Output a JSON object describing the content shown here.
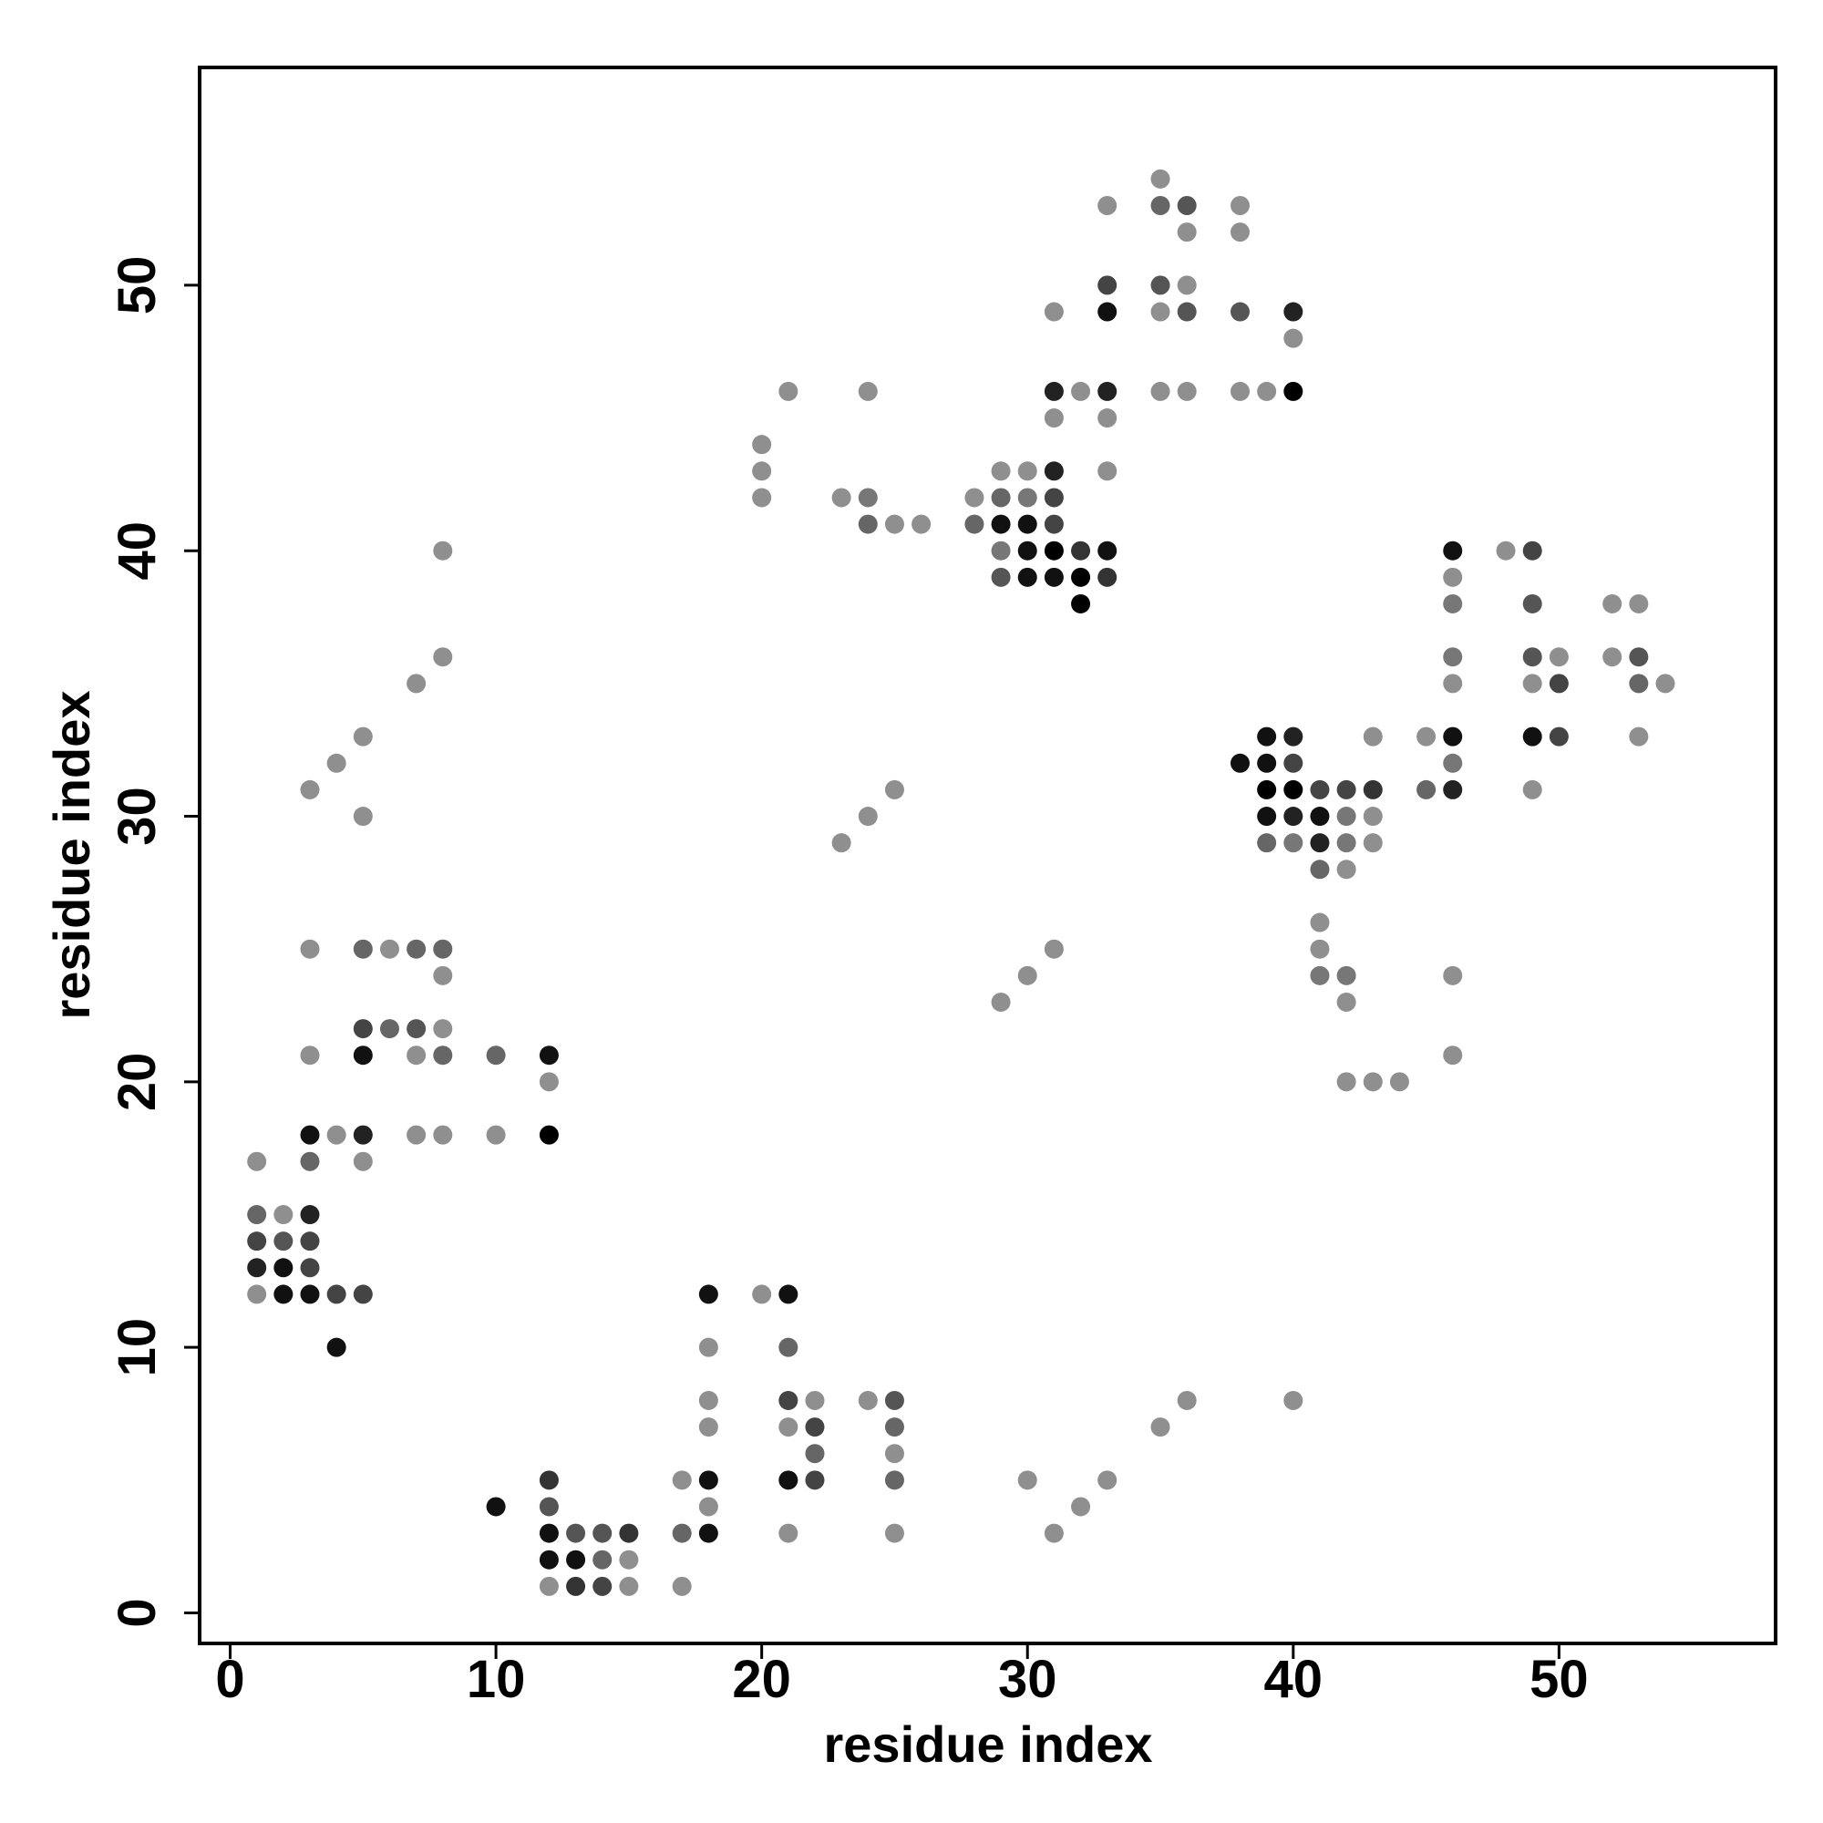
{
  "chart_data": {
    "type": "scatter",
    "x_label": "residue index",
    "y_label": "residue index",
    "xlim": [
      -1.15,
      58.15
    ],
    "ylim": [
      -1.15,
      58.2
    ],
    "xticks": [
      0,
      10,
      20,
      30,
      40,
      50
    ],
    "yticks": [
      0,
      10,
      20,
      30,
      40,
      50
    ],
    "columns": [
      {
        "x": 1,
        "y": [
          17,
          15,
          14,
          13,
          12
        ],
        "colors": [
          "#8f8f8f",
          "#666",
          "#444",
          "#222",
          "#8f8f8f"
        ]
      },
      {
        "x": 2,
        "y": [
          15,
          14,
          13,
          12
        ],
        "colors": [
          "#8f8f8f",
          "#555",
          "#111",
          "#111"
        ]
      },
      {
        "x": 3,
        "y": [
          31,
          25,
          21,
          18,
          17,
          15,
          14,
          13,
          12
        ],
        "colors": [
          "#8f8f8f",
          "#8f8f8f",
          "#8f8f8f",
          "#111",
          "#666",
          "#222",
          "#444",
          "#444",
          "#111"
        ]
      },
      {
        "x": 4,
        "y": [
          32,
          18,
          12,
          10
        ],
        "colors": [
          "#8f8f8f",
          "#8f8f8f",
          "#444",
          "#111"
        ]
      },
      {
        "x": 5,
        "y": [
          33,
          30,
          25,
          22,
          21,
          18,
          17,
          12
        ],
        "colors": [
          "#8f8f8f",
          "#8f8f8f",
          "#666",
          "#444",
          "#111",
          "#222",
          "#8f8f8f",
          "#444"
        ]
      },
      {
        "x": 6,
        "y": [
          25,
          22
        ],
        "colors": [
          "#8f8f8f",
          "#666"
        ]
      },
      {
        "x": 7,
        "y": [
          35,
          25,
          22,
          21,
          18
        ],
        "colors": [
          "#8f8f8f",
          "#666",
          "#555",
          "#8f8f8f",
          "#8f8f8f"
        ]
      },
      {
        "x": 8,
        "y": [
          40,
          36,
          25,
          24,
          22,
          21,
          18
        ],
        "colors": [
          "#8f8f8f",
          "#8f8f8f",
          "#666",
          "#8f8f8f",
          "#8f8f8f",
          "#666",
          "#8f8f8f"
        ]
      },
      {
        "x": 10,
        "y": [
          21,
          18,
          4
        ],
        "colors": [
          "#666",
          "#8f8f8f",
          "#111"
        ]
      },
      {
        "x": 12,
        "y": [
          21,
          20,
          18,
          5,
          4,
          3,
          2,
          1
        ],
        "colors": [
          "#111",
          "#8f8f8f",
          "#000",
          "#333",
          "#555",
          "#111",
          "#111",
          "#8f8f8f"
        ]
      },
      {
        "x": 13,
        "y": [
          3,
          2,
          1
        ],
        "colors": [
          "#555",
          "#111",
          "#333"
        ]
      },
      {
        "x": 14,
        "y": [
          3,
          2,
          1
        ],
        "colors": [
          "#555",
          "#666",
          "#444"
        ]
      },
      {
        "x": 15,
        "y": [
          3,
          2,
          1
        ],
        "colors": [
          "#333",
          "#8f8f8f",
          "#8f8f8f"
        ]
      },
      {
        "x": 17,
        "y": [
          5,
          3,
          1
        ],
        "colors": [
          "#8f8f8f",
          "#666",
          "#8f8f8f"
        ]
      },
      {
        "x": 18,
        "y": [
          12,
          10,
          8,
          7,
          5,
          4,
          3
        ],
        "colors": [
          "#111",
          "#8f8f8f",
          "#8f8f8f",
          "#8f8f8f",
          "#111",
          "#8f8f8f",
          "#111"
        ]
      },
      {
        "x": 20,
        "y": [
          44,
          43,
          42,
          12
        ],
        "colors": [
          "#8f8f8f",
          "#8f8f8f",
          "#8f8f8f",
          "#8f8f8f"
        ]
      },
      {
        "x": 21,
        "y": [
          46,
          12,
          10,
          8,
          7,
          5,
          3
        ],
        "colors": [
          "#8f8f8f",
          "#111",
          "#666",
          "#444",
          "#8f8f8f",
          "#111",
          "#8f8f8f"
        ]
      },
      {
        "x": 22,
        "y": [
          8,
          7,
          6,
          5
        ],
        "colors": [
          "#8f8f8f",
          "#444",
          "#666",
          "#444"
        ]
      },
      {
        "x": 23,
        "y": [
          42,
          29
        ],
        "colors": [
          "#8f8f8f",
          "#8f8f8f"
        ]
      },
      {
        "x": 24,
        "y": [
          46,
          42,
          41,
          30,
          8
        ],
        "colors": [
          "#8f8f8f",
          "#777",
          "#666",
          "#8f8f8f",
          "#8f8f8f"
        ]
      },
      {
        "x": 25,
        "y": [
          41,
          31,
          8,
          7,
          6,
          5,
          3
        ],
        "colors": [
          "#8f8f8f",
          "#8f8f8f",
          "#555",
          "#666",
          "#8f8f8f",
          "#666",
          "#8f8f8f"
        ]
      },
      {
        "x": 26,
        "y": [
          41
        ],
        "colors": [
          "#8f8f8f"
        ]
      },
      {
        "x": 28,
        "y": [
          42,
          41
        ],
        "colors": [
          "#8f8f8f",
          "#666"
        ]
      },
      {
        "x": 29,
        "y": [
          43,
          42,
          41,
          40,
          39,
          23
        ],
        "colors": [
          "#8f8f8f",
          "#666",
          "#111",
          "#777",
          "#555",
          "#8f8f8f"
        ]
      },
      {
        "x": 30,
        "y": [
          43,
          42,
          41,
          40,
          39,
          24,
          5
        ],
        "colors": [
          "#8f8f8f",
          "#777",
          "#111",
          "#111",
          "#111",
          "#8f8f8f",
          "#8f8f8f"
        ]
      },
      {
        "x": 31,
        "y": [
          49,
          46,
          45,
          43,
          42,
          41,
          40,
          39,
          25,
          3
        ],
        "colors": [
          "#8f8f8f",
          "#222",
          "#8f8f8f",
          "#222",
          "#444",
          "#444",
          "#000",
          "#111",
          "#8f8f8f",
          "#8f8f8f"
        ]
      },
      {
        "x": 32,
        "y": [
          46,
          40,
          39,
          38,
          4
        ],
        "colors": [
          "#8f8f8f",
          "#333",
          "#000",
          "#000",
          "#8f8f8f"
        ]
      },
      {
        "x": 33,
        "y": [
          53,
          50,
          49,
          46,
          45,
          43,
          40,
          39,
          5
        ],
        "colors": [
          "#8f8f8f",
          "#444",
          "#111",
          "#222",
          "#8f8f8f",
          "#8f8f8f",
          "#111",
          "#333",
          "#8f8f8f"
        ]
      },
      {
        "x": 35,
        "y": [
          54,
          53,
          50,
          49,
          46,
          7
        ],
        "colors": [
          "#8f8f8f",
          "#666",
          "#555",
          "#8f8f8f",
          "#8f8f8f",
          "#8f8f8f"
        ]
      },
      {
        "x": 36,
        "y": [
          53,
          52,
          50,
          49,
          46,
          8
        ],
        "colors": [
          "#555",
          "#8f8f8f",
          "#8f8f8f",
          "#555",
          "#8f8f8f",
          "#8f8f8f"
        ]
      },
      {
        "x": 38,
        "y": [
          53,
          52,
          49,
          46,
          32
        ],
        "colors": [
          "#8f8f8f",
          "#8f8f8f",
          "#555",
          "#8f8f8f",
          "#111"
        ]
      },
      {
        "x": 39,
        "y": [
          46,
          33,
          32,
          31,
          30,
          29
        ],
        "colors": [
          "#8f8f8f",
          "#111",
          "#111",
          "#000",
          "#111",
          "#666"
        ]
      },
      {
        "x": 40,
        "y": [
          49,
          48,
          46,
          33,
          32,
          31,
          30,
          29,
          8
        ],
        "colors": [
          "#222",
          "#8f8f8f",
          "#000",
          "#222",
          "#444",
          "#000",
          "#222",
          "#777",
          "#8f8f8f"
        ]
      },
      {
        "x": 41,
        "y": [
          31,
          30,
          29,
          28,
          26,
          25,
          24
        ],
        "colors": [
          "#444",
          "#111",
          "#222",
          "#666",
          "#8f8f8f",
          "#8f8f8f",
          "#777"
        ]
      },
      {
        "x": 42,
        "y": [
          31,
          30,
          29,
          28,
          24,
          23,
          20
        ],
        "colors": [
          "#444",
          "#777",
          "#777",
          "#8f8f8f",
          "#777",
          "#8f8f8f",
          "#8f8f8f"
        ]
      },
      {
        "x": 43,
        "y": [
          33,
          31,
          30,
          29,
          20
        ],
        "colors": [
          "#8f8f8f",
          "#333",
          "#8f8f8f",
          "#8f8f8f",
          "#8f8f8f"
        ]
      },
      {
        "x": 44,
        "y": [
          20
        ],
        "colors": [
          "#8f8f8f"
        ]
      },
      {
        "x": 45,
        "y": [
          33,
          31
        ],
        "colors": [
          "#8f8f8f",
          "#666"
        ]
      },
      {
        "x": 46,
        "y": [
          40,
          39,
          38,
          36,
          35,
          33,
          32,
          31,
          24,
          21
        ],
        "colors": [
          "#111",
          "#8f8f8f",
          "#777",
          "#777",
          "#8f8f8f",
          "#111",
          "#777",
          "#222",
          "#8f8f8f",
          "#8f8f8f"
        ]
      },
      {
        "x": 48,
        "y": [
          40
        ],
        "colors": [
          "#8f8f8f"
        ]
      },
      {
        "x": 49,
        "y": [
          40,
          38,
          36,
          35,
          33,
          31
        ],
        "colors": [
          "#444",
          "#555",
          "#555",
          "#8f8f8f",
          "#111",
          "#8f8f8f"
        ]
      },
      {
        "x": 50,
        "y": [
          36,
          35,
          33
        ],
        "colors": [
          "#8f8f8f",
          "#444",
          "#444"
        ]
      },
      {
        "x": 52,
        "y": [
          38,
          36
        ],
        "colors": [
          "#8f8f8f",
          "#8f8f8f"
        ]
      },
      {
        "x": 53,
        "y": [
          38,
          36,
          35,
          33
        ],
        "colors": [
          "#8f8f8f",
          "#555",
          "#666",
          "#8f8f8f"
        ]
      },
      {
        "x": 54,
        "y": [
          35
        ],
        "colors": [
          "#8f8f8f"
        ]
      }
    ]
  }
}
